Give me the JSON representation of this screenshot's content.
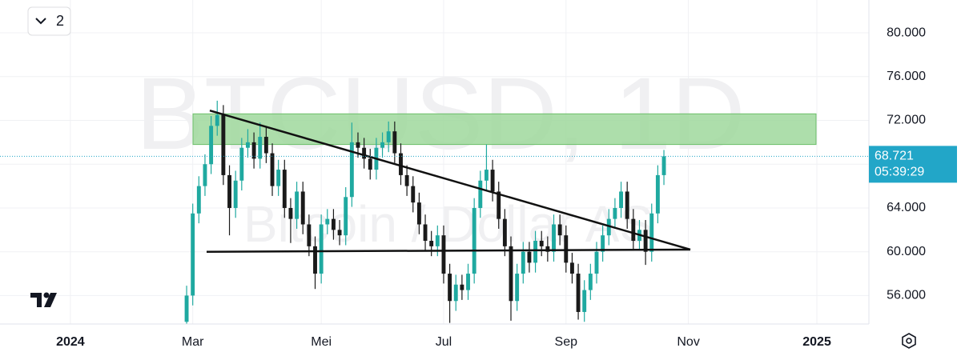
{
  "chart_data": {
    "type": "candlestick",
    "title": "BTCUSD, 1D",
    "subtitle": "Bitcoin / Dollar AS",
    "hidden_indicators": 2,
    "categories": [
      null,
      null,
      null,
      null,
      null,
      null,
      null,
      null,
      null,
      null,
      null,
      "2024",
      null,
      null,
      null,
      null,
      null,
      null,
      null,
      null,
      null,
      null,
      null,
      null,
      null,
      null,
      null,
      null,
      null,
      null,
      null,
      "Mar",
      null,
      null,
      null,
      null,
      null,
      null,
      null,
      null,
      null,
      null,
      null,
      null,
      null,
      null,
      null,
      null,
      null,
      null,
      null,
      null,
      "Mei",
      null,
      null,
      null,
      null,
      null,
      null,
      null,
      null,
      null,
      null,
      null,
      null,
      null,
      null,
      null,
      null,
      null,
      null,
      null,
      "Jul",
      null,
      null,
      null,
      null,
      null,
      null,
      null,
      null,
      null,
      null,
      null,
      null,
      null,
      null,
      null,
      null,
      null,
      null,
      null,
      "Sep",
      null,
      null,
      null,
      null,
      null,
      null,
      null,
      null,
      null,
      null,
      null,
      null,
      null,
      null,
      null,
      null,
      null,
      null,
      null,
      "Nov",
      null,
      null,
      null,
      null,
      null,
      null,
      null,
      null,
      null,
      null,
      null,
      null,
      null,
      null,
      null,
      null,
      null,
      null,
      null,
      null,
      "2025",
      null,
      null,
      null,
      null,
      null,
      null,
      null,
      null
    ],
    "open": [
      null,
      null,
      null,
      null,
      null,
      null,
      null,
      null,
      null,
      null,
      null,
      null,
      null,
      null,
      null,
      null,
      null,
      null,
      null,
      null,
      null,
      null,
      null,
      null,
      null,
      null,
      null,
      null,
      null,
      null,
      53600,
      56000,
      63500,
      66000,
      68000,
      71500,
      72500,
      67000,
      64000,
      66500,
      69500,
      70000,
      68500,
      70500,
      69000,
      66000,
      67500,
      64000,
      63000,
      65500,
      62500,
      60500,
      58000,
      62500,
      63000,
      62000,
      61500,
      65000,
      70000,
      69500,
      68500,
      67500,
      69500,
      70000,
      71000,
      69000,
      67000,
      66000,
      64500,
      62500,
      61000,
      60500,
      61500,
      58000,
      55500,
      57000,
      56500,
      58000,
      64000,
      66500,
      67500,
      65500,
      63000,
      60500,
      55500,
      58000,
      60000,
      59000,
      61000,
      60500,
      60000,
      62500,
      61500,
      59000,
      58000,
      54500,
      56500,
      58000,
      60000,
      61500,
      63000,
      64000,
      65500,
      63000,
      61000,
      62000,
      60000,
      63500,
      67000,
      null,
      null,
      null,
      null,
      null,
      null,
      null,
      null,
      null,
      null,
      null,
      null,
      null,
      null,
      null,
      null,
      null,
      null,
      null,
      null,
      null,
      null,
      null,
      null,
      null,
      null,
      null,
      null,
      null,
      null,
      null,
      null,
      null
    ],
    "high": [
      null,
      null,
      null,
      null,
      null,
      null,
      null,
      null,
      null,
      null,
      null,
      null,
      null,
      null,
      null,
      null,
      null,
      null,
      null,
      null,
      null,
      null,
      null,
      null,
      null,
      null,
      null,
      null,
      null,
      null,
      56900,
      64400,
      66900,
      68900,
      72400,
      73800,
      73400,
      67900,
      67400,
      70400,
      71200,
      70900,
      71800,
      71400,
      69900,
      68400,
      68400,
      64900,
      66400,
      66400,
      63400,
      61400,
      63400,
      63900,
      63900,
      62900,
      65900,
      71800,
      70900,
      70400,
      69400,
      70400,
      70900,
      71900,
      71900,
      69900,
      67900,
      66900,
      65400,
      63400,
      61900,
      62400,
      62400,
      58900,
      57900,
      57900,
      58900,
      64900,
      67400,
      69800,
      68400,
      66400,
      63900,
      61400,
      58900,
      60900,
      60900,
      61900,
      61900,
      61400,
      63400,
      63400,
      62400,
      59900,
      58900,
      57400,
      58900,
      60900,
      62400,
      63900,
      64900,
      66400,
      66400,
      63900,
      62900,
      62900,
      64400,
      67900,
      69300,
      null,
      null,
      null,
      null,
      null,
      null,
      null,
      null,
      null,
      null,
      null,
      null,
      null,
      null,
      null,
      null,
      null,
      null,
      null,
      null,
      null,
      null,
      null,
      null,
      null,
      null,
      null,
      null,
      null,
      null,
      null,
      null,
      null
    ],
    "low": [
      null,
      null,
      null,
      null,
      null,
      null,
      null,
      null,
      null,
      null,
      null,
      null,
      null,
      null,
      null,
      null,
      null,
      null,
      null,
      null,
      null,
      null,
      null,
      null,
      null,
      null,
      null,
      null,
      null,
      null,
      52700,
      55100,
      62600,
      65100,
      67100,
      70600,
      66100,
      61500,
      63100,
      65600,
      68600,
      67600,
      67600,
      68100,
      65100,
      65100,
      63100,
      60800,
      62100,
      61600,
      59600,
      56600,
      57100,
      61600,
      61100,
      60600,
      60600,
      64100,
      68600,
      67600,
      66600,
      66600,
      68600,
      69100,
      68100,
      66100,
      65100,
      63600,
      61600,
      60100,
      59600,
      59600,
      57100,
      53500,
      54600,
      55600,
      55600,
      57100,
      63100,
      65600,
      64600,
      62100,
      59600,
      53700,
      54600,
      57100,
      58100,
      58100,
      59600,
      59100,
      59100,
      60600,
      58100,
      57100,
      53800,
      53600,
      55600,
      57100,
      59100,
      60600,
      62100,
      63100,
      62100,
      60100,
      60100,
      58800,
      59100,
      62600,
      66100,
      null,
      null,
      null,
      null,
      null,
      null,
      null,
      null,
      null,
      null,
      null,
      null,
      null,
      null,
      null,
      null,
      null,
      null,
      null,
      null,
      null,
      null,
      null,
      null,
      null,
      null,
      null,
      null,
      null,
      null,
      null,
      null,
      null
    ],
    "close": [
      null,
      null,
      null,
      null,
      null,
      null,
      null,
      null,
      null,
      null,
      null,
      null,
      null,
      null,
      null,
      null,
      null,
      null,
      null,
      null,
      null,
      null,
      null,
      null,
      null,
      null,
      null,
      null,
      null,
      null,
      56000,
      63500,
      66000,
      68000,
      71500,
      72500,
      67000,
      64000,
      66500,
      69500,
      70000,
      68500,
      70500,
      69000,
      66000,
      67500,
      64000,
      63000,
      65500,
      62500,
      60500,
      58000,
      62500,
      63000,
      62000,
      61500,
      65000,
      70000,
      69500,
      68500,
      67500,
      69500,
      70000,
      71000,
      69000,
      67000,
      66000,
      64500,
      62500,
      61000,
      60500,
      61500,
      58000,
      55500,
      57000,
      56500,
      58000,
      64000,
      66500,
      67500,
      65500,
      63000,
      60500,
      55500,
      58000,
      60000,
      59000,
      61000,
      60500,
      60000,
      62500,
      61500,
      59000,
      58000,
      54500,
      56500,
      58000,
      60000,
      61500,
      63000,
      64000,
      65500,
      63000,
      61000,
      62000,
      60000,
      63500,
      67000,
      68721,
      null,
      null,
      null,
      null,
      null,
      null,
      null,
      null,
      null,
      null,
      null,
      null,
      null,
      null,
      null,
      null,
      null,
      null,
      null,
      null,
      null,
      null,
      null,
      null,
      null,
      null,
      null,
      null,
      null,
      null,
      null,
      null,
      null
    ],
    "up_color": "#1fa9a0",
    "down_color": "#1a1a1a",
    "ylim": [
      53400,
      83000
    ],
    "yticks": [
      {
        "value": 56000,
        "label": "56.000"
      },
      {
        "value": 60000,
        "label": "60.000"
      },
      {
        "value": 64000,
        "label": "64.000"
      },
      {
        "value": 68000,
        "label": "68.000"
      },
      {
        "value": 72000,
        "label": "72.000"
      },
      {
        "value": 76000,
        "label": "76.000"
      },
      {
        "value": 80000,
        "label": "80.000"
      }
    ],
    "grid": true,
    "last_price": {
      "value": 68721,
      "label": "68.721",
      "countdown": "05:39:29",
      "color": "#22a6c8"
    },
    "zone": {
      "from": 69800,
      "to": 72600,
      "color": "#9fd89c"
    },
    "trendline": {
      "values": [
        72900,
        60200
      ],
      "color": "#111111"
    },
    "support": {
      "values": [
        60000,
        60200
      ],
      "color": "#111111"
    }
  }
}
